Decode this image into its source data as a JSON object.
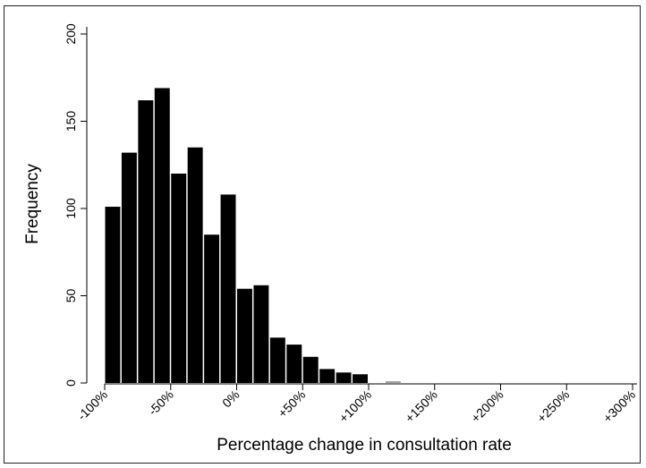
{
  "chart_data": {
    "type": "bar",
    "title": "",
    "xlabel": "Percentage change in consultation rate",
    "ylabel": "Frequency",
    "x_range": [
      -100,
      300
    ],
    "ylim": [
      0,
      200
    ],
    "y_ticks": [
      0,
      50,
      100,
      150,
      200
    ],
    "y_tick_labels": [
      "0",
      "50",
      "100",
      "150",
      "200"
    ],
    "x_ticks": [
      -100,
      -50,
      0,
      50,
      100,
      150,
      200,
      250,
      300
    ],
    "x_tick_labels": [
      "-100%",
      "-50%",
      "0%",
      "+50%",
      "+100%",
      "+150%",
      "+200%",
      "+250%",
      "+300%"
    ],
    "bin_width": 12.5,
    "bins": [
      {
        "x": -100,
        "value": 101
      },
      {
        "x": -87.5,
        "value": 132
      },
      {
        "x": -75,
        "value": 162
      },
      {
        "x": -62.5,
        "value": 169
      },
      {
        "x": -50,
        "value": 120
      },
      {
        "x": -37.5,
        "value": 135
      },
      {
        "x": -25,
        "value": 85
      },
      {
        "x": -12.5,
        "value": 108
      },
      {
        "x": 0,
        "value": 54
      },
      {
        "x": 12.5,
        "value": 56
      },
      {
        "x": 25,
        "value": 26
      },
      {
        "x": 37.5,
        "value": 22
      },
      {
        "x": 50,
        "value": 15
      },
      {
        "x": 62.5,
        "value": 8
      },
      {
        "x": 75,
        "value": 6
      },
      {
        "x": 87.5,
        "value": 5
      },
      {
        "x": 112.5,
        "value": 1,
        "color": "#a0a0a0"
      }
    ],
    "grid": false,
    "bar_color": "#000000"
  }
}
